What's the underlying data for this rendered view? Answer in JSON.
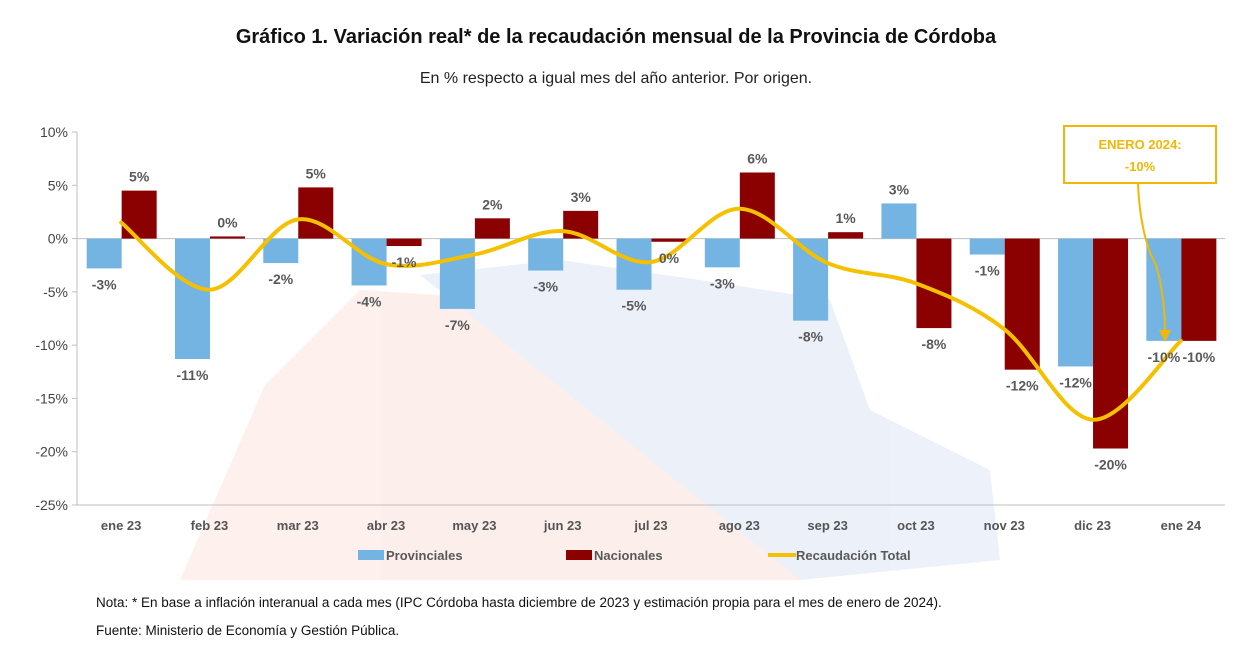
{
  "title": "Gráfico 1. Variación real* de la recaudación mensual de la Provincia de Córdoba",
  "subtitle": "En % respecto a igual mes del año anterior. Por origen.",
  "colors": {
    "provinciales": "#74B4E2",
    "nacionales": "#8B0000",
    "total": "#F5C000",
    "callout": "#F2B705"
  },
  "chart_data": {
    "type": "bar",
    "categories": [
      "ene 23",
      "feb 23",
      "mar 23",
      "abr 23",
      "may 23",
      "jun 23",
      "jul 23",
      "ago 23",
      "sep 23",
      "oct 23",
      "nov 23",
      "dic 23",
      "ene 24"
    ],
    "series": [
      {
        "name": "Provinciales",
        "type": "bar",
        "values": [
          -2.8,
          -11.3,
          -2.3,
          -4.4,
          -6.6,
          -3.0,
          -4.8,
          -2.7,
          -7.7,
          3.3,
          -1.5,
          -12.0,
          -9.6
        ],
        "labels": [
          "-3%",
          "-11%",
          "-2%",
          "-4%",
          "-7%",
          "-3%",
          "-5%",
          "-3%",
          "-8%",
          "3%",
          "-1%",
          "-12%",
          "-10%"
        ]
      },
      {
        "name": "Nacionales",
        "type": "bar",
        "values": [
          4.5,
          0.2,
          4.8,
          -0.7,
          1.9,
          2.6,
          -0.3,
          6.2,
          0.6,
          -8.4,
          -12.3,
          -19.7,
          -9.6
        ],
        "labels": [
          "5%",
          "0%",
          "5%",
          "-1%",
          "2%",
          "3%",
          "0%",
          "6%",
          "1%",
          "-8%",
          "-12%",
          "-20%",
          "-10%"
        ]
      },
      {
        "name": "Recaudación Total",
        "type": "line",
        "values": [
          1.5,
          -4.8,
          1.8,
          -2.4,
          -1.5,
          0.7,
          -2.2,
          2.8,
          -2.3,
          -4.2,
          -8.5,
          -17.0,
          -9.6
        ]
      }
    ],
    "yticks": [
      "10%",
      "5%",
      "0%",
      "-5%",
      "-10%",
      "-15%",
      "-20%",
      "-25%"
    ],
    "ylim": [
      -25,
      10
    ],
    "legend": [
      "Provinciales",
      "Nacionales",
      "Recaudación Total"
    ],
    "legend_position": "bottom",
    "annotation": {
      "line1": "ENERO 2024:",
      "line2": "-10%"
    }
  },
  "notes": {
    "nota": "Nota: * En base a inflación interanual a cada mes (IPC Córdoba hasta diciembre de 2023 y estimación propia para el mes de enero de 2024).",
    "fuente": "Fuente: Ministerio de Economía y Gestión Pública."
  }
}
